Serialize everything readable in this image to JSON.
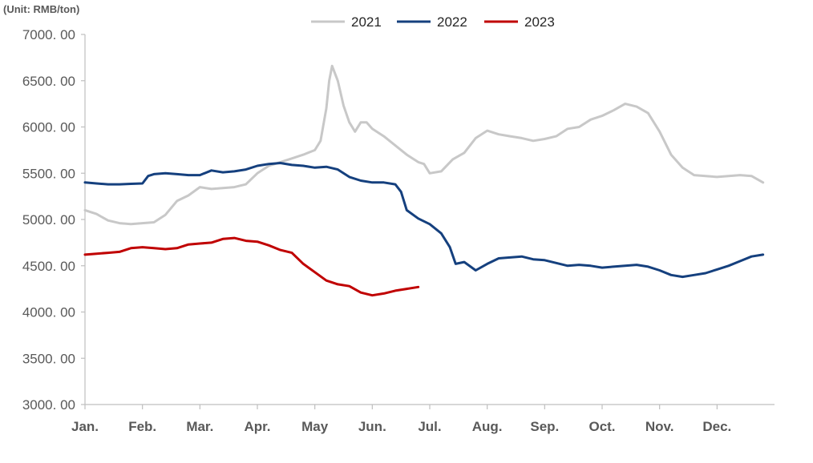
{
  "chart_data": {
    "type": "line",
    "title": "",
    "unit_label": "(Unit: RMB/ton)",
    "xlabel": "",
    "ylabel": "",
    "ylim": [
      3000,
      7000
    ],
    "y_ticks": [
      3000,
      3500,
      4000,
      4500,
      5000,
      5500,
      6000,
      6500,
      7000
    ],
    "y_tick_labels": [
      "3000. 00",
      "3500. 00",
      "4000. 00",
      "4500. 00",
      "5000. 00",
      "5500. 00",
      "6000. 00",
      "6500. 00",
      "7000. 00"
    ],
    "x_range": [
      0,
      12
    ],
    "month_labels": [
      "Jan.",
      "Feb.",
      "Mar.",
      "Apr.",
      "May",
      "Jun.",
      "Jul.",
      "Aug.",
      "Sep.",
      "Oct.",
      "Nov.",
      "Dec."
    ],
    "legend_position": "top-center",
    "grid": false,
    "series": [
      {
        "name": "2021",
        "color": "#c8c8c8",
        "x": [
          0,
          0.2,
          0.4,
          0.6,
          0.8,
          1.0,
          1.2,
          1.4,
          1.6,
          1.8,
          2.0,
          2.2,
          2.4,
          2.6,
          2.8,
          3.0,
          3.2,
          3.4,
          3.6,
          3.8,
          4.0,
          4.1,
          4.2,
          4.25,
          4.3,
          4.4,
          4.5,
          4.6,
          4.7,
          4.8,
          4.9,
          5.0,
          5.2,
          5.4,
          5.6,
          5.8,
          5.9,
          6.0,
          6.2,
          6.4,
          6.6,
          6.8,
          7.0,
          7.2,
          7.4,
          7.6,
          7.8,
          8.0,
          8.2,
          8.4,
          8.6,
          8.8,
          9.0,
          9.2,
          9.4,
          9.6,
          9.8,
          10.0,
          10.2,
          10.4,
          10.6,
          10.8,
          11.0,
          11.2,
          11.4,
          11.6,
          11.8
        ],
        "values": [
          5100,
          5060,
          4990,
          4960,
          4950,
          4960,
          4970,
          5050,
          5200,
          5260,
          5350,
          5330,
          5340,
          5350,
          5380,
          5500,
          5580,
          5620,
          5660,
          5700,
          5750,
          5850,
          6200,
          6500,
          6660,
          6500,
          6230,
          6050,
          5950,
          6050,
          6050,
          5980,
          5900,
          5800,
          5700,
          5620,
          5600,
          5500,
          5520,
          5650,
          5720,
          5880,
          5960,
          5920,
          5900,
          5880,
          5850,
          5870,
          5900,
          5980,
          6000,
          6080,
          6120,
          6180,
          6250,
          6220,
          6150,
          5950,
          5700,
          5560,
          5480,
          5470,
          5460,
          5470,
          5480,
          5470,
          5400
        ]
      },
      {
        "name": "2022",
        "color": "#15407e",
        "x": [
          0,
          0.2,
          0.4,
          0.6,
          0.8,
          1.0,
          1.1,
          1.2,
          1.4,
          1.6,
          1.8,
          2.0,
          2.2,
          2.4,
          2.6,
          2.8,
          3.0,
          3.2,
          3.4,
          3.6,
          3.8,
          4.0,
          4.2,
          4.4,
          4.6,
          4.8,
          5.0,
          5.2,
          5.4,
          5.5,
          5.6,
          5.8,
          6.0,
          6.2,
          6.35,
          6.45,
          6.6,
          6.8,
          7.0,
          7.2,
          7.4,
          7.6,
          7.8,
          8.0,
          8.2,
          8.4,
          8.6,
          8.8,
          9.0,
          9.2,
          9.4,
          9.6,
          9.8,
          10.0,
          10.2,
          10.4,
          10.6,
          10.8,
          11.0,
          11.2,
          11.4,
          11.6,
          11.8
        ],
        "values": [
          5400,
          5390,
          5380,
          5380,
          5385,
          5390,
          5470,
          5490,
          5500,
          5490,
          5480,
          5480,
          5530,
          5510,
          5520,
          5540,
          5580,
          5600,
          5610,
          5590,
          5580,
          5560,
          5570,
          5540,
          5460,
          5420,
          5400,
          5400,
          5380,
          5300,
          5100,
          5010,
          4950,
          4850,
          4700,
          4520,
          4540,
          4450,
          4520,
          4580,
          4590,
          4600,
          4570,
          4560,
          4530,
          4500,
          4510,
          4500,
          4480,
          4490,
          4500,
          4510,
          4490,
          4450,
          4400,
          4380,
          4400,
          4420,
          4460,
          4500,
          4550,
          4600,
          4620
        ]
      },
      {
        "name": "2023",
        "color": "#c00000",
        "x": [
          0,
          0.2,
          0.4,
          0.6,
          0.8,
          1.0,
          1.2,
          1.4,
          1.6,
          1.8,
          2.0,
          2.2,
          2.4,
          2.6,
          2.8,
          3.0,
          3.2,
          3.4,
          3.6,
          3.8,
          4.0,
          4.2,
          4.4,
          4.6,
          4.8,
          5.0,
          5.2,
          5.4,
          5.6,
          5.8
        ],
        "values": [
          4620,
          4630,
          4640,
          4650,
          4690,
          4700,
          4690,
          4680,
          4690,
          4730,
          4740,
          4750,
          4790,
          4800,
          4770,
          4760,
          4720,
          4670,
          4640,
          4520,
          4430,
          4340,
          4300,
          4280,
          4210,
          4180,
          4200,
          4230,
          4250,
          4270
        ]
      }
    ]
  }
}
